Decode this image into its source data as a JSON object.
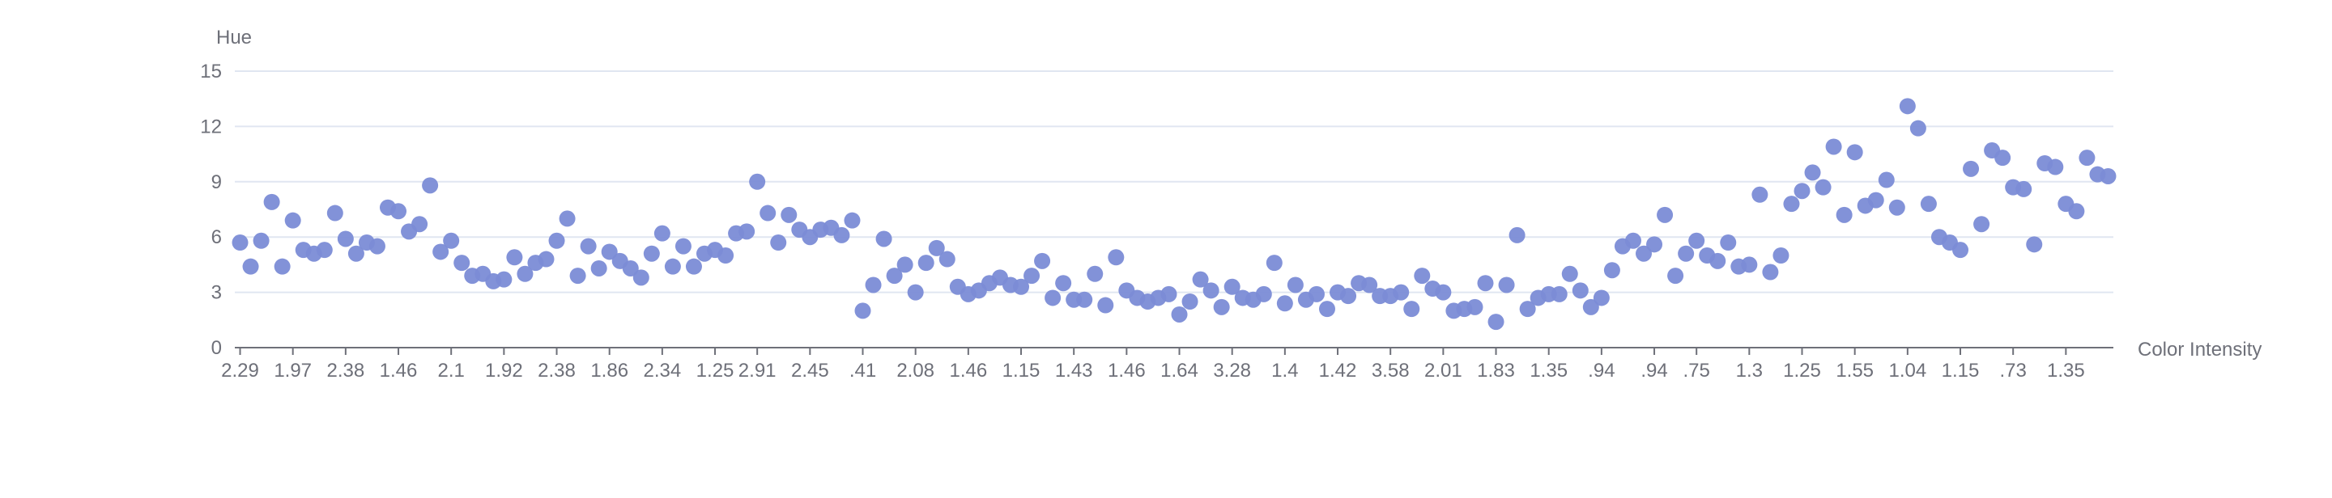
{
  "chart_data": {
    "type": "scatter",
    "title": "",
    "xlabel": "Color Intensity",
    "ylabel": "Hue",
    "ylim": [
      0,
      15
    ],
    "y_ticks": [
      "0",
      "3",
      "6",
      "9",
      "12",
      "15"
    ],
    "grid": "horizontal",
    "x_tick_labels": [
      "2.29",
      "1.97",
      "2.38",
      "1.46",
      "2.1",
      "1.92",
      "2.38",
      "1.86",
      "2.34",
      "1.25",
      "2.91",
      "2.45",
      ".41",
      "2.08",
      "1.46",
      "1.15",
      "1.43",
      "1.46",
      "1.64",
      "3.28",
      "1.4",
      "1.42",
      "3.58",
      "2.01",
      "1.83",
      "1.35",
      ".94",
      ".94",
      ".75",
      "1.3",
      "1.25",
      "1.55",
      "1.04",
      "1.15",
      ".73",
      "1.35"
    ],
    "marker_color": "#7b8cd6",
    "values": [
      5.7,
      4.4,
      5.8,
      7.9,
      4.4,
      6.9,
      5.3,
      5.1,
      5.3,
      7.3,
      5.9,
      5.1,
      5.7,
      5.5,
      7.6,
      7.4,
      6.3,
      6.7,
      8.8,
      5.2,
      5.8,
      4.6,
      3.9,
      4.0,
      3.6,
      3.7,
      4.9,
      4.0,
      4.6,
      4.8,
      5.8,
      7.0,
      3.9,
      5.5,
      4.3,
      5.2,
      4.7,
      4.3,
      3.8,
      5.1,
      6.2,
      4.4,
      5.5,
      4.4,
      5.1,
      5.3,
      5.0,
      6.2,
      6.3,
      9.0,
      7.3,
      5.7,
      7.2,
      6.4,
      6.0,
      6.4,
      6.5,
      6.1,
      6.9,
      2.0,
      3.4,
      5.9,
      3.9,
      4.5,
      3.0,
      4.6,
      5.4,
      4.8,
      3.3,
      2.9,
      3.1,
      3.5,
      3.8,
      3.4,
      3.3,
      3.9,
      4.7,
      2.7,
      3.5,
      2.6,
      2.6,
      4.0,
      2.3,
      4.9,
      3.1,
      2.7,
      2.5,
      2.7,
      2.9,
      1.8,
      2.5,
      3.7,
      3.1,
      2.2,
      3.3,
      2.7,
      2.6,
      2.9,
      4.6,
      2.4,
      3.4,
      2.6,
      2.9,
      2.1,
      3.0,
      2.8,
      3.5,
      3.4,
      2.8,
      2.8,
      3.0,
      2.1,
      3.9,
      3.2,
      3.0,
      2.0,
      2.1,
      2.2,
      3.5,
      1.4,
      3.4,
      6.1,
      2.1,
      2.7,
      2.9,
      2.9,
      4.0,
      3.1,
      2.2,
      2.7,
      4.2,
      5.5,
      5.8,
      5.1,
      5.6,
      7.2,
      3.9,
      5.1,
      5.8,
      5.0,
      4.7,
      5.7,
      4.4,
      4.5,
      8.3,
      4.1,
      5.0,
      7.8,
      8.5,
      9.5,
      8.7,
      10.9,
      7.2,
      10.6,
      7.7,
      8.0,
      9.1,
      7.6,
      13.1,
      11.9,
      7.8,
      6.0,
      5.7,
      5.3,
      9.7,
      6.7,
      10.7,
      10.3,
      8.7,
      8.6,
      5.6,
      10.0,
      9.8,
      7.8,
      7.4,
      10.3,
      9.4,
      9.3
    ]
  }
}
